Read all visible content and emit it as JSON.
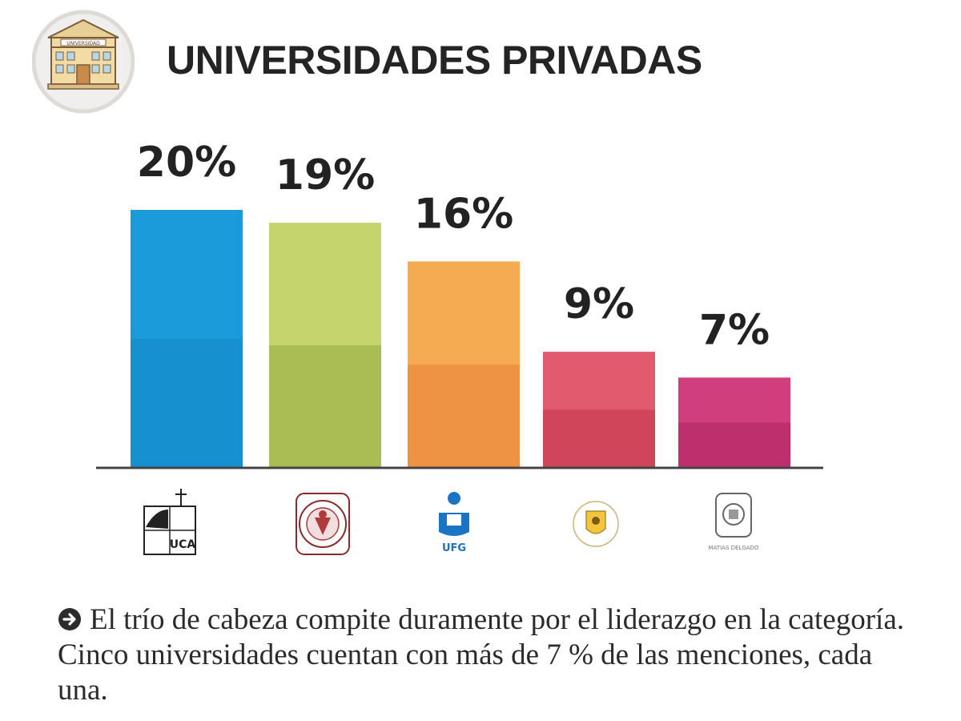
{
  "header": {
    "title": "UNIVERSIDADES PRIVADAS",
    "badge_icon": "university-building-icon",
    "badge_text": "UNIVERSIDAD"
  },
  "chart_data": {
    "type": "bar",
    "title": "UNIVERSIDADES PRIVADAS",
    "categories": [
      "UCA",
      "Universidad (sello rojo)",
      "UFG",
      "Universidad (escudo amarillo)",
      "Universidad (escudo gris)"
    ],
    "values": [
      20,
      19,
      16,
      9,
      7
    ],
    "labels": [
      "20%",
      "19%",
      "16%",
      "9%",
      "7%"
    ],
    "ylim": [
      0,
      20
    ],
    "unit": "%",
    "colors": [
      {
        "top": "#1a9ad8",
        "bottom": "#1690cf"
      },
      {
        "top": "#c5d46b",
        "bottom": "#aabd55"
      },
      {
        "top": "#f4ab52",
        "bottom": "#ee9243"
      },
      {
        "top": "#e05a6c",
        "bottom": "#cf4559"
      },
      {
        "top": "#d13e7d",
        "bottom": "#bd2e6c"
      }
    ],
    "logo_icons": [
      "uca-logo-icon",
      "red-seal-logo-icon",
      "ufg-logo-icon",
      "yellow-shield-logo-icon",
      "gray-shield-logo-icon"
    ],
    "logo_texts": [
      "UCA",
      "",
      "UFG",
      "",
      "MATIAS DELGADO"
    ]
  },
  "caption": {
    "icon": "arrow-circle-icon",
    "text": "El trío de cabeza compite duramente por el liderazgo en la categoría. Cinco universidades cuentan con más de 7 % de las menciones, cada una."
  }
}
